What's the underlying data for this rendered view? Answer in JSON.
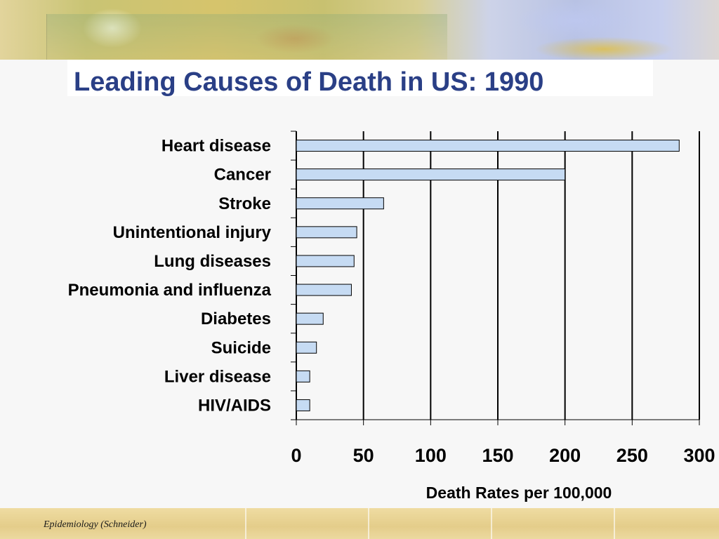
{
  "slide": {
    "title": "Leading Causes of Death in US: 1990",
    "footer": "Epidemiology  (Schneider)"
  },
  "colors": {
    "title": "#2a3f86",
    "bar_fill": "#c6dbf3",
    "bar_stroke": "#000000"
  },
  "chart_data": {
    "type": "bar",
    "orientation": "horizontal",
    "title": "",
    "xlabel": "Death Rates per 100,000",
    "ylabel": "",
    "categories": [
      "Heart disease",
      "Cancer",
      "Stroke",
      "Unintentional injury",
      "Lung diseases",
      "Pneumonia and influenza",
      "Diabetes",
      "Suicide",
      "Liver disease",
      "HIV/AIDS"
    ],
    "values": [
      285,
      200,
      65,
      45,
      43,
      41,
      20,
      15,
      10,
      10
    ],
    "xlim": [
      0,
      300
    ],
    "xticks": [
      "0",
      "50",
      "100",
      "150",
      "200",
      "250",
      "300"
    ],
    "grid": true,
    "legend": "none"
  }
}
